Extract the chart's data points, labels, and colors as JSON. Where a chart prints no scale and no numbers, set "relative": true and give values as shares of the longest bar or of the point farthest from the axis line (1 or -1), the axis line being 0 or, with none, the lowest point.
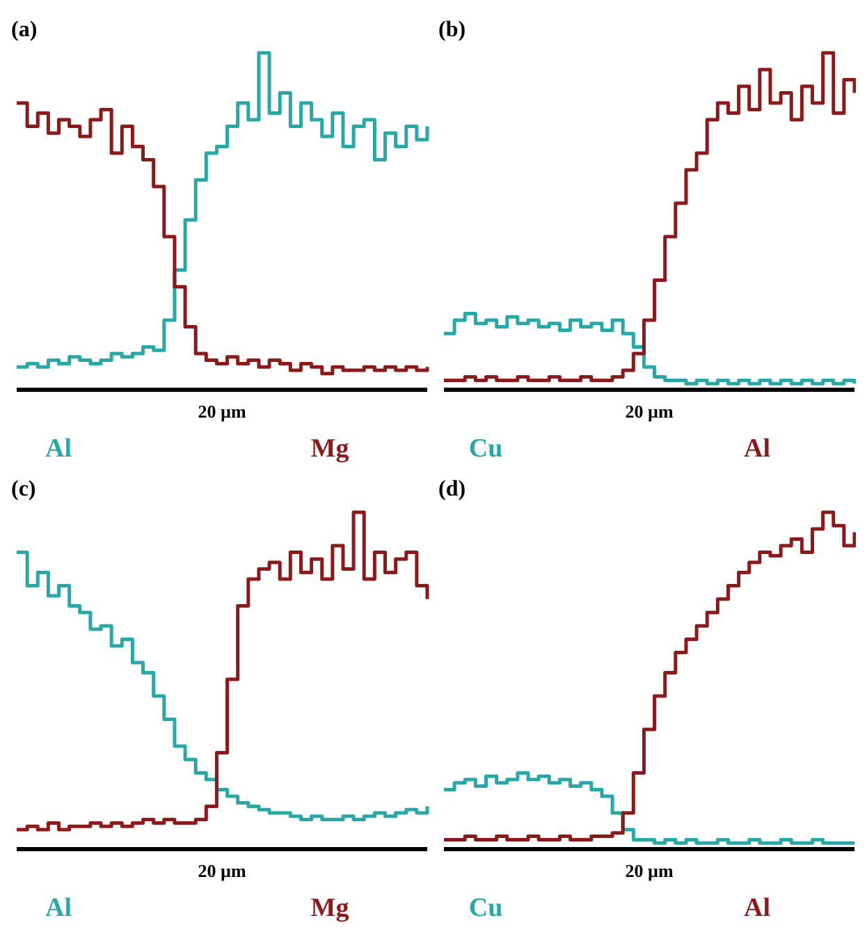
{
  "chart_data": [
    {
      "type": "step",
      "title": "(a)",
      "xlabel": "20 µm",
      "relative": true,
      "categories": [
        null,
        null,
        null,
        null,
        null,
        null,
        null,
        null,
        null,
        null,
        null,
        null,
        null,
        null,
        null,
        null,
        null,
        null,
        null,
        null,
        null,
        null,
        null,
        null,
        null,
        null,
        null,
        null,
        null,
        null,
        null,
        null,
        null,
        null,
        null,
        null,
        null,
        null,
        null,
        null
      ],
      "series": [
        {
          "name": "Al",
          "color": "#2aa8a8",
          "values": [
            0.06,
            0.07,
            0.06,
            0.08,
            0.07,
            0.09,
            0.08,
            0.07,
            0.08,
            0.1,
            0.09,
            0.1,
            0.12,
            0.11,
            0.2,
            0.35,
            0.5,
            0.62,
            0.7,
            0.72,
            0.78,
            0.85,
            0.8,
            1,
            0.82,
            0.88,
            0.78,
            0.85,
            0.8,
            0.75,
            0.82,
            0.72,
            0.78,
            0.8,
            0.68,
            0.76,
            0.72,
            0.78,
            0.74,
            0.78
          ]
        },
        {
          "name": "Mg",
          "color": "#8b1a1a",
          "values": [
            0.85,
            0.78,
            0.82,
            0.76,
            0.8,
            0.78,
            0.75,
            0.8,
            0.83,
            0.7,
            0.78,
            0.72,
            0.68,
            0.6,
            0.45,
            0.3,
            0.18,
            0.1,
            0.08,
            0.07,
            0.09,
            0.07,
            0.08,
            0.06,
            0.08,
            0.07,
            0.05,
            0.07,
            0.06,
            0.04,
            0.06,
            0.05,
            0.05,
            0.06,
            0.05,
            0.06,
            0.05,
            0.06,
            0.05,
            0.06
          ]
        }
      ]
    },
    {
      "type": "step",
      "title": "(b)",
      "xlabel": "20 µm",
      "relative": true,
      "categories": [
        null,
        null,
        null,
        null,
        null,
        null,
        null,
        null,
        null,
        null,
        null,
        null,
        null,
        null,
        null,
        null,
        null,
        null,
        null,
        null,
        null,
        null,
        null,
        null,
        null,
        null,
        null,
        null,
        null,
        null,
        null,
        null,
        null,
        null,
        null,
        null,
        null,
        null,
        null,
        null
      ],
      "series": [
        {
          "name": "Cu",
          "color": "#2aa8a8",
          "values": [
            0.16,
            0.2,
            0.22,
            0.19,
            0.2,
            0.18,
            0.21,
            0.19,
            0.2,
            0.18,
            0.19,
            0.17,
            0.2,
            0.18,
            0.19,
            0.17,
            0.2,
            0.16,
            0.12,
            0.06,
            0.03,
            0.02,
            0.02,
            0.01,
            0.02,
            0.01,
            0.02,
            0.01,
            0.02,
            0.01,
            0.02,
            0.01,
            0.02,
            0.01,
            0.02,
            0.01,
            0.02,
            0.01,
            0.02,
            0.01
          ]
        },
        {
          "name": "Al",
          "color": "#8b1a1a",
          "values": [
            0.02,
            0.02,
            0.03,
            0.02,
            0.03,
            0.02,
            0.02,
            0.03,
            0.02,
            0.02,
            0.03,
            0.02,
            0.02,
            0.03,
            0.02,
            0.02,
            0.03,
            0.05,
            0.1,
            0.2,
            0.32,
            0.45,
            0.55,
            0.65,
            0.7,
            0.8,
            0.85,
            0.82,
            0.9,
            0.83,
            0.95,
            0.85,
            0.88,
            0.8,
            0.9,
            0.85,
            1,
            0.82,
            0.92,
            0.88
          ]
        }
      ]
    },
    {
      "type": "step",
      "title": "(c)",
      "xlabel": "20 µm",
      "relative": true,
      "categories": [
        null,
        null,
        null,
        null,
        null,
        null,
        null,
        null,
        null,
        null,
        null,
        null,
        null,
        null,
        null,
        null,
        null,
        null,
        null,
        null,
        null,
        null,
        null,
        null,
        null,
        null,
        null,
        null,
        null,
        null,
        null,
        null,
        null,
        null,
        null,
        null,
        null,
        null,
        null,
        null
      ],
      "series": [
        {
          "name": "Al",
          "color": "#2aa8a8",
          "values": [
            0.88,
            0.78,
            0.82,
            0.75,
            0.78,
            0.72,
            0.7,
            0.65,
            0.66,
            0.6,
            0.62,
            0.55,
            0.52,
            0.45,
            0.38,
            0.3,
            0.26,
            0.22,
            0.2,
            0.17,
            0.15,
            0.13,
            0.12,
            0.11,
            0.1,
            0.1,
            0.09,
            0.08,
            0.09,
            0.08,
            0.08,
            0.09,
            0.08,
            0.09,
            0.1,
            0.09,
            0.1,
            0.11,
            0.1,
            0.12
          ]
        },
        {
          "name": "Mg",
          "color": "#8b1a1a",
          "values": [
            0.05,
            0.06,
            0.05,
            0.07,
            0.05,
            0.06,
            0.06,
            0.07,
            0.06,
            0.07,
            0.06,
            0.07,
            0.08,
            0.07,
            0.08,
            0.07,
            0.07,
            0.08,
            0.12,
            0.28,
            0.5,
            0.72,
            0.8,
            0.83,
            0.85,
            0.8,
            0.88,
            0.82,
            0.86,
            0.8,
            0.9,
            0.83,
            1,
            0.8,
            0.88,
            0.82,
            0.86,
            0.88,
            0.78,
            0.74
          ]
        }
      ]
    },
    {
      "type": "step",
      "title": "(d)",
      "xlabel": "20 µm",
      "relative": true,
      "categories": [
        null,
        null,
        null,
        null,
        null,
        null,
        null,
        null,
        null,
        null,
        null,
        null,
        null,
        null,
        null,
        null,
        null,
        null,
        null,
        null,
        null,
        null,
        null,
        null,
        null,
        null,
        null,
        null,
        null,
        null,
        null,
        null,
        null,
        null,
        null,
        null,
        null,
        null,
        null,
        null
      ],
      "series": [
        {
          "name": "Cu",
          "color": "#2aa8a8",
          "values": [
            0.17,
            0.19,
            0.2,
            0.18,
            0.21,
            0.19,
            0.2,
            0.22,
            0.2,
            0.21,
            0.19,
            0.2,
            0.18,
            0.19,
            0.17,
            0.15,
            0.1,
            0.05,
            0.02,
            0.02,
            0.01,
            0.02,
            0.01,
            0.02,
            0.01,
            0.01,
            0.02,
            0.01,
            0.01,
            0.02,
            0.01,
            0.01,
            0.02,
            0.01,
            0.01,
            0.02,
            0.01,
            0.01,
            0.01,
            0.01
          ]
        },
        {
          "name": "Al",
          "color": "#8b1a1a",
          "values": [
            0.02,
            0.02,
            0.03,
            0.02,
            0.02,
            0.03,
            0.02,
            0.02,
            0.03,
            0.02,
            0.02,
            0.03,
            0.02,
            0.02,
            0.03,
            0.03,
            0.04,
            0.1,
            0.22,
            0.35,
            0.45,
            0.52,
            0.58,
            0.62,
            0.66,
            0.7,
            0.74,
            0.78,
            0.82,
            0.85,
            0.88,
            0.87,
            0.9,
            0.92,
            0.88,
            0.95,
            1,
            0.96,
            0.9,
            0.94
          ]
        }
      ]
    }
  ]
}
